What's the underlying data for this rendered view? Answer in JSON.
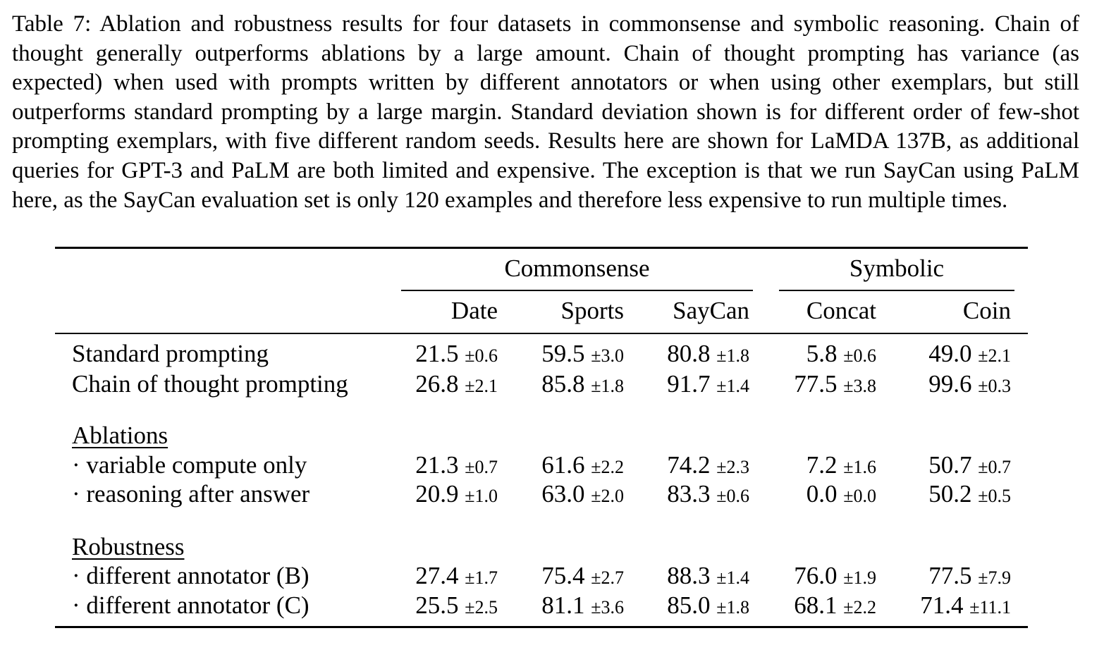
{
  "caption": "Table 7:  Ablation and robustness results for four datasets in commonsense and symbolic reasoning. Chain of thought generally outperforms ablations by a large amount. Chain of thought prompting has variance (as expected) when used with prompts written by different annotators or when using other exemplars, but still outperforms standard prompting by a large margin. Standard deviation shown is for different order of few-shot prompting exemplars, with five different random seeds. Results here are shown for LaMDA 137B, as additional queries for GPT-3 and PaLM are both limited and expensive. The exception is that we run SayCan using PaLM here, as the SayCan evaluation set is only 120 examples and therefore less expensive to run multiple times.",
  "groups": {
    "commonsense": "Commonsense",
    "symbolic": "Symbolic"
  },
  "columns": [
    "Date",
    "Sports",
    "SayCan",
    "Concat",
    "Coin"
  ],
  "sections": {
    "ablations": "Ablations",
    "robustness": "Robustness"
  },
  "rows": [
    {
      "label": "Standard prompting",
      "cells": [
        [
          "21.5",
          "±0.6"
        ],
        [
          "59.5",
          "±3.0"
        ],
        [
          "80.8",
          "±1.8"
        ],
        [
          "5.8",
          "±0.6"
        ],
        [
          "49.0",
          "±2.1"
        ]
      ]
    },
    {
      "label": "Chain of thought prompting",
      "cells": [
        [
          "26.8",
          "±2.1"
        ],
        [
          "85.8",
          "±1.8"
        ],
        [
          "91.7",
          "±1.4"
        ],
        [
          "77.5",
          "±3.8"
        ],
        [
          "99.6",
          "±0.3"
        ]
      ]
    },
    {
      "label": "· variable compute only",
      "cells": [
        [
          "21.3",
          "±0.7"
        ],
        [
          "61.6",
          "±2.2"
        ],
        [
          "74.2",
          "±2.3"
        ],
        [
          "7.2",
          "±1.6"
        ],
        [
          "50.7",
          "±0.7"
        ]
      ]
    },
    {
      "label": "· reasoning after answer",
      "cells": [
        [
          "20.9",
          "±1.0"
        ],
        [
          "63.0",
          "±2.0"
        ],
        [
          "83.3",
          "±0.6"
        ],
        [
          "0.0",
          "±0.0"
        ],
        [
          "50.2",
          "±0.5"
        ]
      ]
    },
    {
      "label": "· different annotator (B)",
      "cells": [
        [
          "27.4",
          "±1.7"
        ],
        [
          "75.4",
          "±2.7"
        ],
        [
          "88.3",
          "±1.4"
        ],
        [
          "76.0",
          "±1.9"
        ],
        [
          "77.5",
          "±7.9"
        ]
      ]
    },
    {
      "label": "· different annotator (C)",
      "cells": [
        [
          "25.5",
          "±2.5"
        ],
        [
          "81.1",
          "±3.6"
        ],
        [
          "85.0",
          "±1.8"
        ],
        [
          "68.1",
          "±2.2"
        ],
        [
          "71.4",
          "±11.1"
        ]
      ]
    }
  ]
}
